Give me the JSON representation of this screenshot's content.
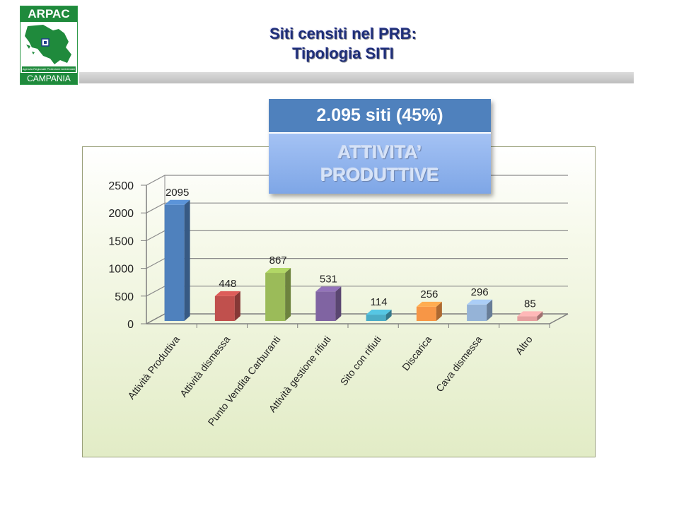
{
  "logo": {
    "top_text": "ARPAC",
    "small_text": "Agenzia Regionale Protezione Ambientale",
    "bottom_text": "CAMPANIA",
    "icon": "campania-map-icon"
  },
  "title": {
    "line1": "Siti censiti nel PRB:",
    "line2": "Tipologia SITI"
  },
  "callout": {
    "headline": "2.095 siti (45%)",
    "line1": "ATTIVITA’",
    "line2": "PRODUTTIVE"
  },
  "colors": {
    "title": "#1f2f78",
    "callout_head": "#4f81bd",
    "callout_body": "#8eb1ea",
    "panel_border": "#9aa07a"
  },
  "chart_data": {
    "type": "bar",
    "categories": [
      "Attività Produttiva",
      "Attività dismessa",
      "Punto Vendita Carburanti",
      "Attività gestione rifiuti",
      "Sito con rifiuti",
      "Discarica",
      "Cava dismessa",
      "Altro"
    ],
    "values": [
      2095,
      448,
      867,
      531,
      114,
      256,
      296,
      85
    ],
    "colors": [
      "#4f81bd",
      "#c0504d",
      "#9bbb59",
      "#8064a2",
      "#4bacc6",
      "#f79646",
      "#95b3d7",
      "#e6a0a0"
    ],
    "y_ticks": [
      "0",
      "500",
      "1000",
      "1500",
      "2000",
      "2500"
    ],
    "ylim": [
      0,
      2500
    ],
    "title": "",
    "xlabel": "",
    "ylabel": "",
    "grid": true,
    "legend": "none",
    "data_labels": true,
    "style": "3d-column"
  }
}
